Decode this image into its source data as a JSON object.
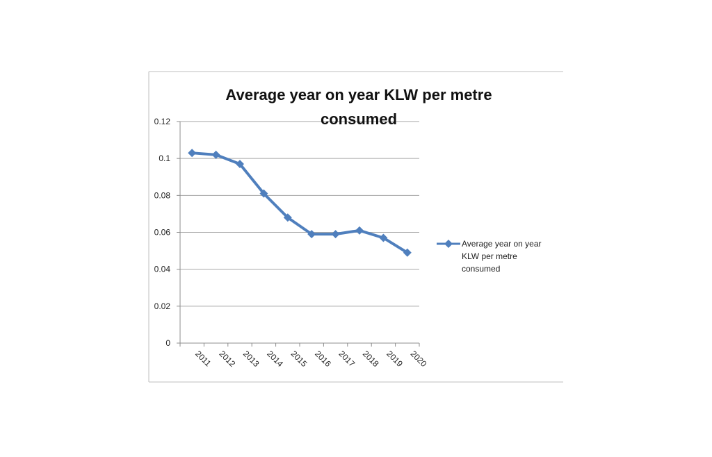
{
  "chart_data": {
    "type": "line",
    "title_lines": [
      "Average year on year KLW per metre",
      "consumed"
    ],
    "xlabel": "",
    "ylabel": "",
    "categories": [
      "2011",
      "2012",
      "2013",
      "2014",
      "2015",
      "2016",
      "2017",
      "2018",
      "2019",
      "2020"
    ],
    "series": [
      {
        "name": "Average year on year KLW per metre consumed",
        "name_lines": [
          "Average year on year",
          "KLW per metre",
          "consumed"
        ],
        "values": [
          0.103,
          0.102,
          0.097,
          0.081,
          0.068,
          0.059,
          0.059,
          0.061,
          0.057,
          0.049
        ],
        "color": "#4f7fbd",
        "marker": "diamond"
      }
    ],
    "ylim": [
      0,
      0.12
    ],
    "yticks": [
      "0",
      "0.02",
      "0.04",
      "0.06",
      "0.08",
      "0.1",
      "0.12"
    ],
    "grid": "horizontal",
    "legend_position": "right"
  }
}
